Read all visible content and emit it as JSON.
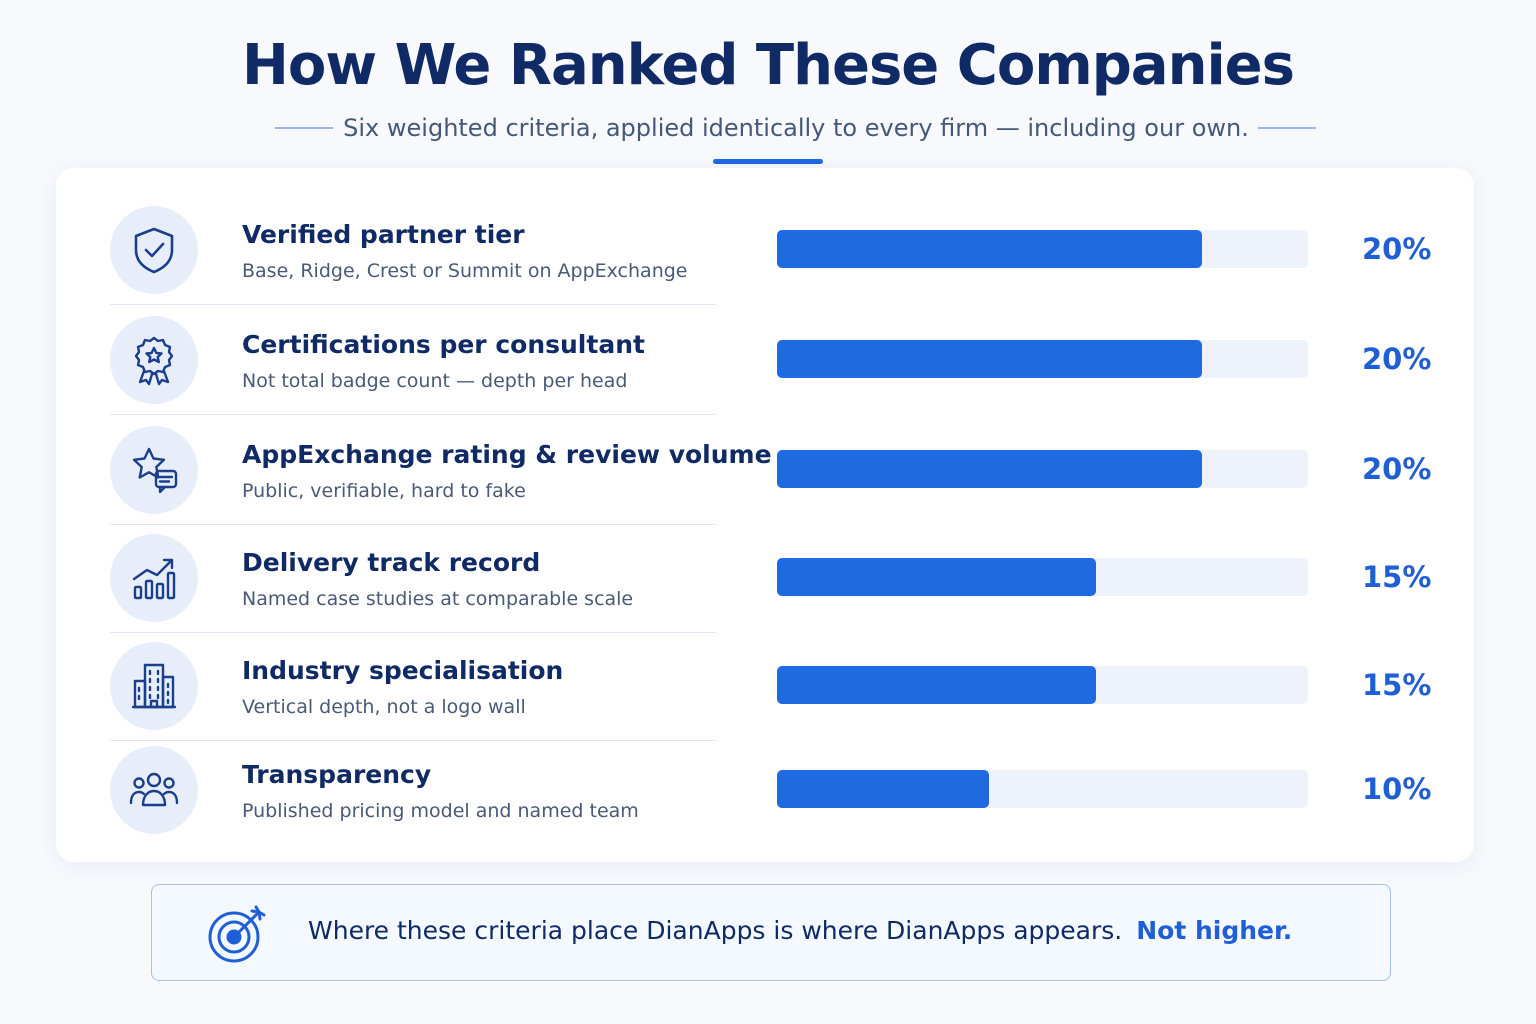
{
  "title": "How We Ranked These Companies",
  "subtitle": "Six weighted criteria, applied identically to every firm — including our own.",
  "criteria": [
    {
      "label": "Verified partner tier",
      "description": "Base, Ridge, Crest or Summit on AppExchange",
      "value_label": "20%",
      "icon": "shield-check-icon"
    },
    {
      "label": "Certifications per consultant",
      "description": "Not total badge count — depth per head",
      "value_label": "20%",
      "icon": "award-badge-icon"
    },
    {
      "label": "AppExchange rating & review volume",
      "description": "Public, verifiable, hard to fake",
      "value_label": "20%",
      "icon": "star-review-icon"
    },
    {
      "label": "Delivery track record",
      "description": "Named case studies at comparable scale",
      "value_label": "15%",
      "icon": "growth-chart-icon"
    },
    {
      "label": "Industry specialisation",
      "description": "Vertical depth, not a logo wall",
      "value_label": "15%",
      "icon": "building-icon"
    },
    {
      "label": "Transparency",
      "description": "Published pricing model and named team",
      "value_label": "10%",
      "icon": "team-icon"
    }
  ],
  "chart_data": {
    "type": "bar",
    "orientation": "horizontal",
    "categories": [
      "Verified partner tier",
      "Certifications per consultant",
      "AppExchange rating & review volume",
      "Delivery track record",
      "Industry specialisation",
      "Transparency"
    ],
    "values": [
      20,
      20,
      20,
      15,
      15,
      10
    ],
    "unit": "%",
    "xlim": [
      0,
      25
    ],
    "grid": false
  },
  "callout": {
    "text": "Where these criteria place DianApps is where DianApps appears.",
    "emphasis": "Not higher.",
    "icon": "target-icon"
  },
  "colors": {
    "primary": "#1f6ae0",
    "navy": "#0f2a64",
    "track": "#eef3fb",
    "icon_bg": "#e8eef9"
  }
}
